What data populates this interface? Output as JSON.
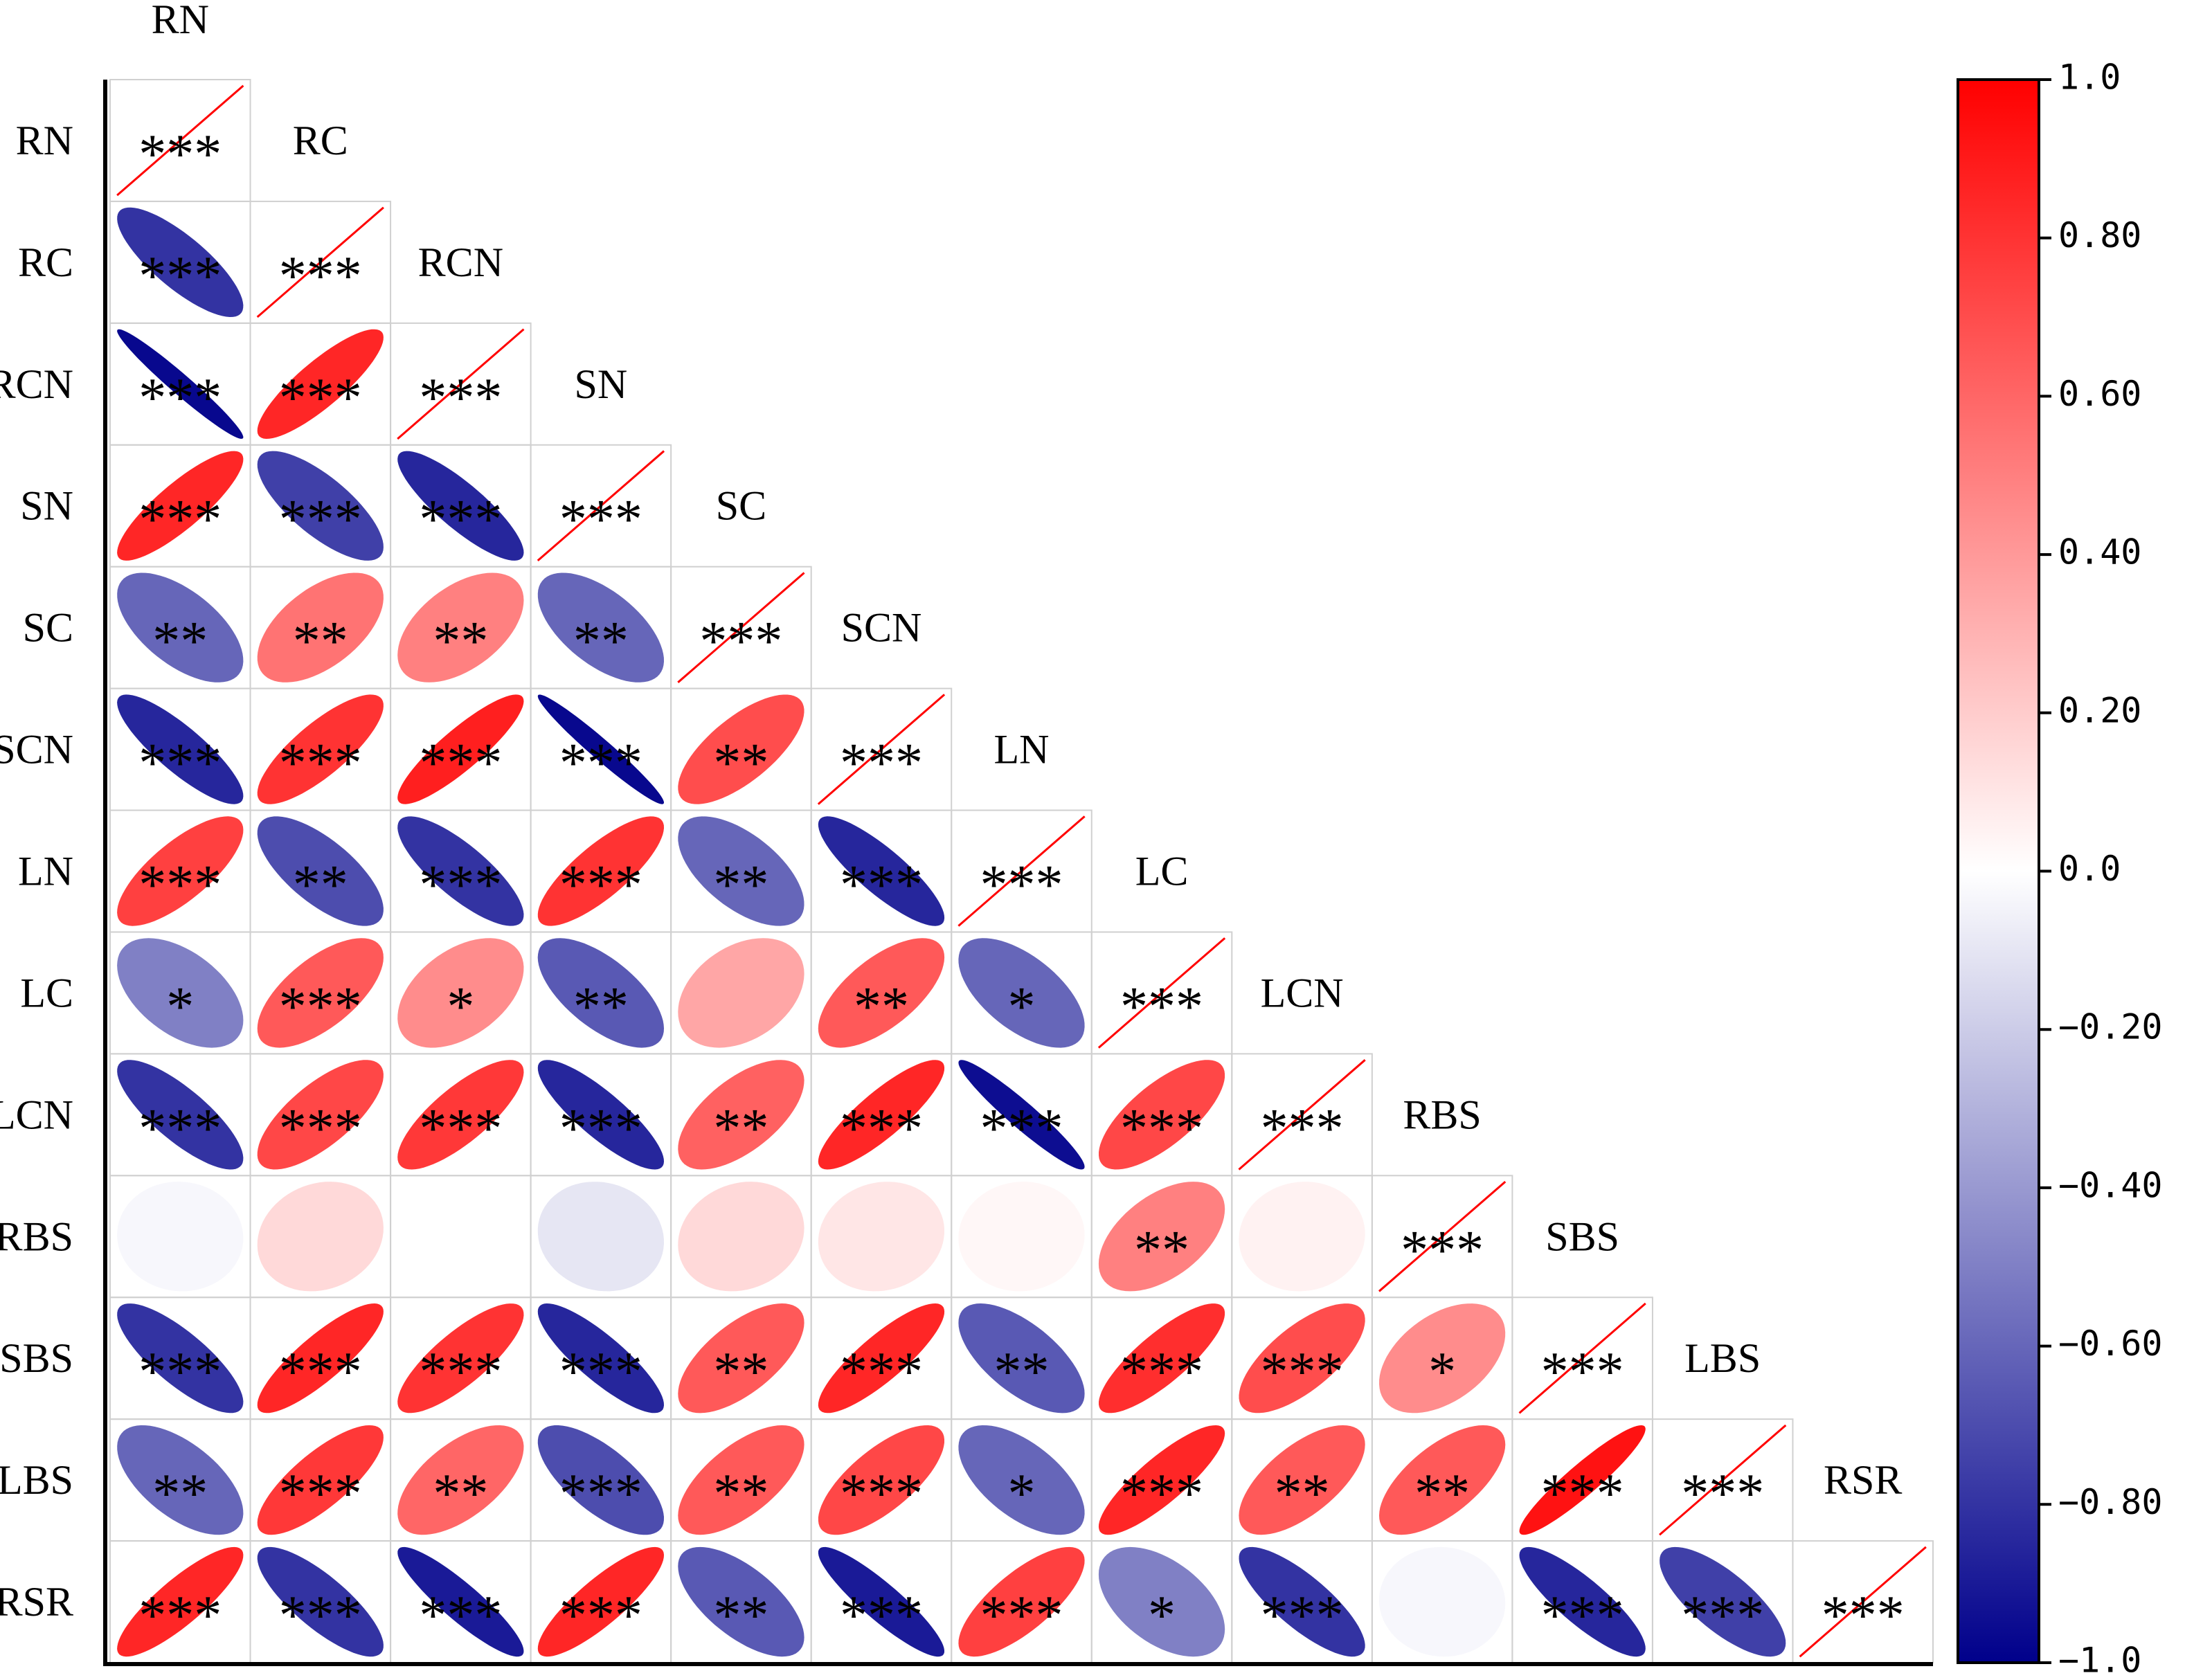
{
  "chart_data": {
    "type": "corrplot",
    "variables": [
      "RN",
      "RC",
      "RCN",
      "SN",
      "SC",
      "SCN",
      "LN",
      "LC",
      "LCN",
      "RBS",
      "SBS",
      "LBS",
      "RSR"
    ],
    "matrix": [
      [
        1
      ],
      [
        -0.8,
        1
      ],
      [
        -0.97,
        0.85,
        1
      ],
      [
        0.85,
        -0.75,
        -0.85,
        1
      ],
      [
        -0.6,
        0.55,
        0.5,
        -0.6,
        1
      ],
      [
        -0.85,
        0.8,
        0.88,
        -0.97,
        0.7,
        1
      ],
      [
        0.75,
        -0.7,
        -0.8,
        0.8,
        -0.6,
        -0.85,
        1
      ],
      [
        -0.5,
        0.65,
        0.45,
        -0.65,
        0.35,
        0.65,
        -0.6,
        1
      ],
      [
        -0.8,
        0.72,
        0.78,
        -0.85,
        0.62,
        0.85,
        -0.95,
        0.72,
        1
      ],
      [
        -0.03,
        0.15,
        0.0,
        -0.1,
        0.15,
        0.1,
        0.03,
        0.5,
        0.05,
        1
      ],
      [
        -0.8,
        0.85,
        0.8,
        -0.85,
        0.65,
        0.85,
        -0.65,
        0.82,
        0.7,
        0.45,
        1
      ],
      [
        -0.6,
        0.78,
        0.6,
        -0.7,
        0.65,
        0.72,
        -0.6,
        0.85,
        0.65,
        0.65,
        0.93,
        1
      ],
      [
        0.85,
        -0.8,
        -0.9,
        0.85,
        -0.65,
        -0.9,
        0.75,
        -0.5,
        -0.8,
        -0.03,
        -0.85,
        -0.75,
        1
      ]
    ],
    "stars": [
      [
        "***"
      ],
      [
        "***",
        "***"
      ],
      [
        "***",
        "***",
        "***"
      ],
      [
        "***",
        "***",
        "***",
        "***"
      ],
      [
        "**",
        "**",
        "**",
        "**",
        "***"
      ],
      [
        "***",
        "***",
        "***",
        "***",
        "**",
        "***"
      ],
      [
        "***",
        "**",
        "***",
        "***",
        "**",
        "***",
        "***"
      ],
      [
        "*",
        "***",
        "*",
        "**",
        null,
        "**",
        "*",
        "***"
      ],
      [
        "***",
        "***",
        "***",
        "***",
        "**",
        "***",
        "***",
        "***",
        "***"
      ],
      [
        null,
        null,
        null,
        null,
        null,
        null,
        null,
        "**",
        null,
        "***"
      ],
      [
        "***",
        "***",
        "***",
        "***",
        "**",
        "***",
        "**",
        "***",
        "***",
        "*",
        "***"
      ],
      [
        "**",
        "***",
        "**",
        "***",
        "**",
        "***",
        "*",
        "***",
        "**",
        "**",
        "***",
        "***"
      ],
      [
        "***",
        "***",
        "***",
        "***",
        "**",
        "***",
        "***",
        "*",
        "***",
        null,
        "***",
        "***",
        "***"
      ]
    ],
    "colors": [
      "#00008B",
      "#FFFFFF",
      "#FF0000"
    ],
    "clim": [
      -1,
      1
    ],
    "cticks": [
      {
        "value": 1,
        "label": "1.0"
      },
      {
        "value": 0.8,
        "label": "0.80"
      },
      {
        "value": 0.6,
        "label": "0.60"
      },
      {
        "value": 0.4,
        "label": "0.40"
      },
      {
        "value": 0.2,
        "label": "0.20"
      },
      {
        "value": 0,
        "label": "0.0"
      },
      {
        "value": -0.2,
        "label": "−0.20"
      },
      {
        "value": -0.4,
        "label": "−0.40"
      },
      {
        "value": -0.6,
        "label": "−0.60"
      },
      {
        "value": -0.8,
        "label": "−0.80"
      },
      {
        "value": -1,
        "label": "−1.0"
      }
    ]
  }
}
